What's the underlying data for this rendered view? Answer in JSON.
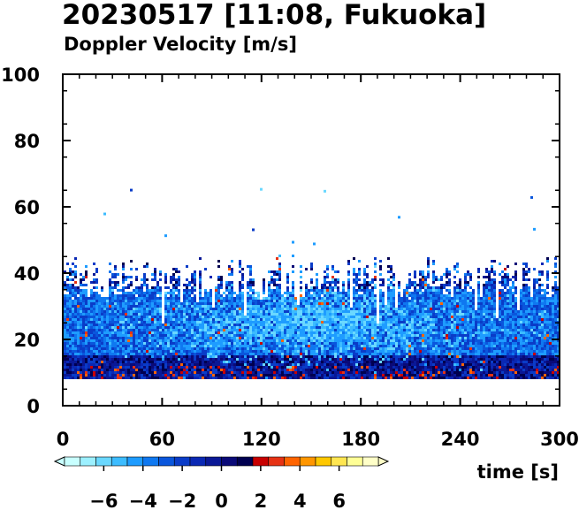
{
  "title": "20230517 [11:08, Fukuoka]",
  "subtitle": "Doppler Velocity [m/s]",
  "chart_data": {
    "type": "heatmap",
    "title": "20230517 [11:08, Fukuoka]",
    "subtitle": "Doppler Velocity [m/s]",
    "xlabel": "time [s]",
    "ylabel": "",
    "xlim": [
      0,
      300
    ],
    "ylim": [
      0,
      100
    ],
    "x_ticks": [
      0,
      60,
      120,
      180,
      240,
      300
    ],
    "y_ticks": [
      0,
      20,
      40,
      60,
      80,
      100
    ],
    "x_tick_labels": [
      "0",
      "60",
      "120",
      "180",
      "240",
      "300"
    ],
    "y_tick_labels": [
      "0",
      "20",
      "40",
      "60",
      "80",
      "100"
    ],
    "data_y_range": [
      8,
      47
    ],
    "colorbar": {
      "min": -8,
      "max": 8,
      "tick_values": [
        -6,
        -4,
        -2,
        0,
        2,
        4,
        6
      ],
      "tick_labels": [
        "−6",
        "−4",
        "−2",
        "0",
        "2",
        "4",
        "6"
      ],
      "colors": [
        "#c8ffff",
        "#9cf0ff",
        "#6ad8ff",
        "#3cbcff",
        "#1e9cff",
        "#0f78f0",
        "#0a56dc",
        "#0a3cc8",
        "#0a28b4",
        "#0a1896",
        "#0a0a78",
        "#000050",
        "#c80000",
        "#e63214",
        "#ff6400",
        "#ff9600",
        "#ffc800",
        "#ffe650",
        "#ffff96",
        "#ffffc8"
      ]
    }
  }
}
